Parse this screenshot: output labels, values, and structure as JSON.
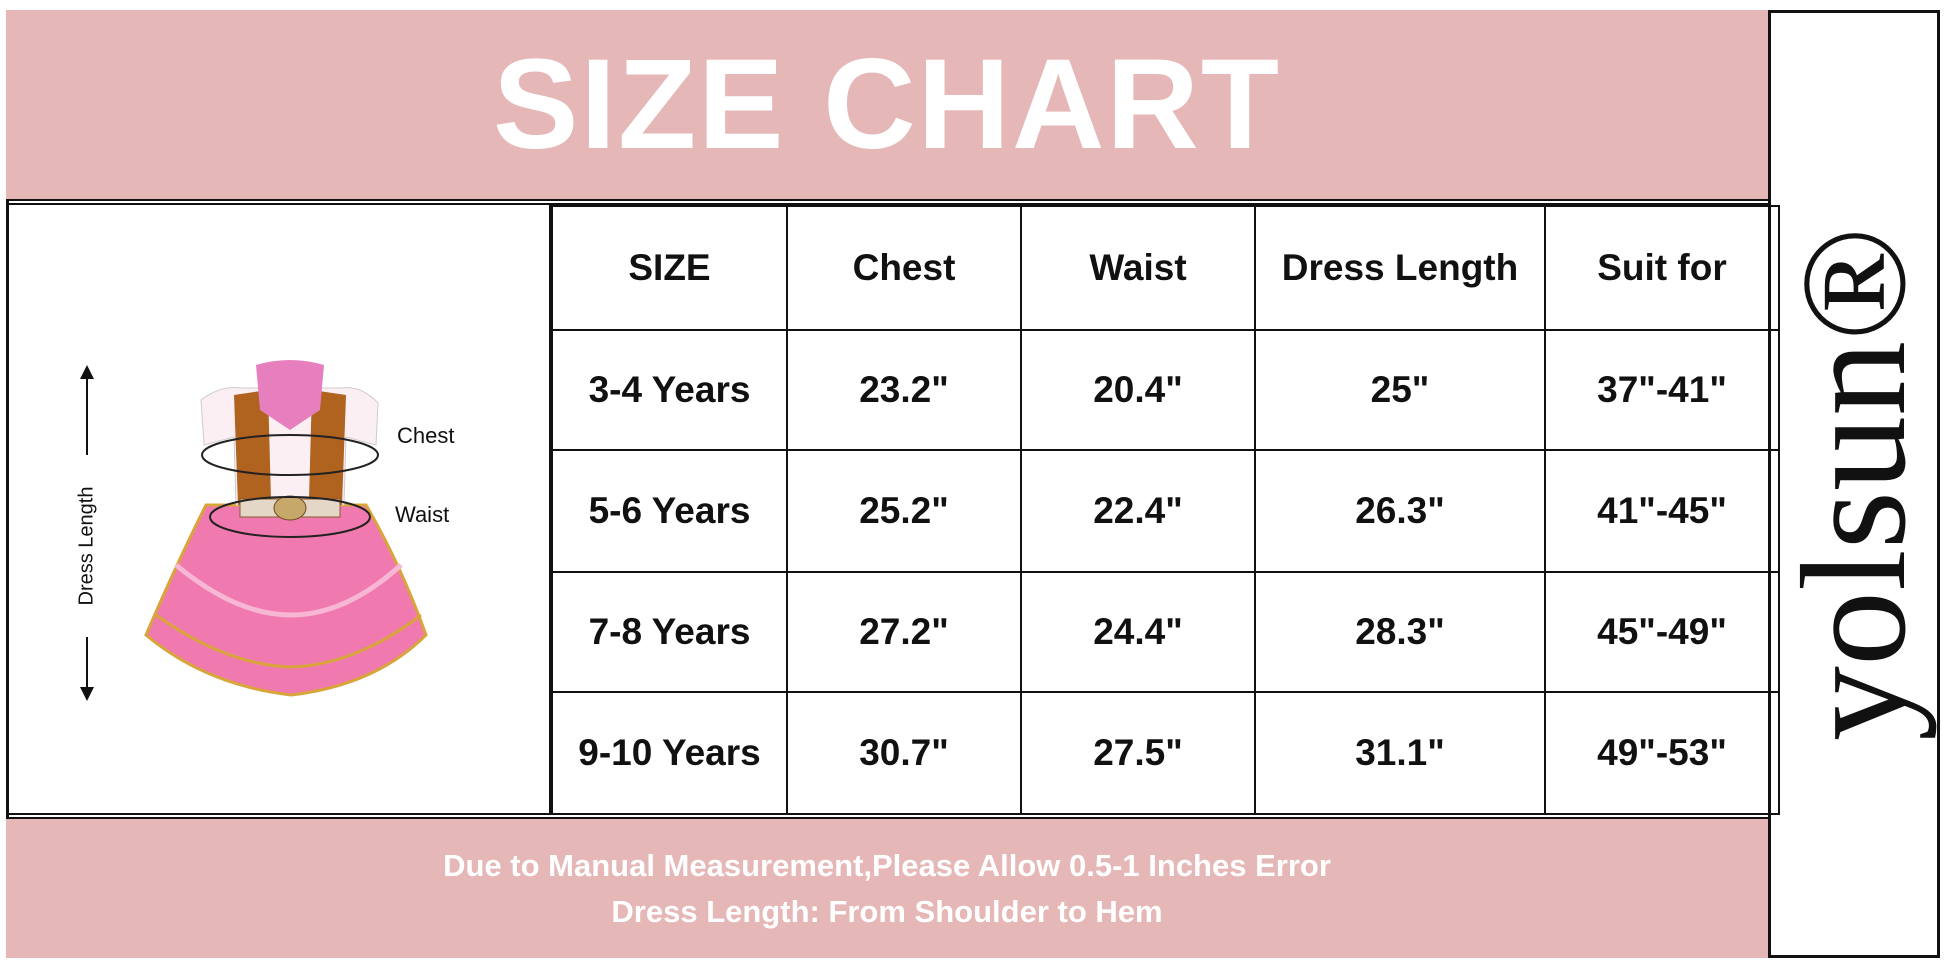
{
  "header": {
    "title": "SIZE CHART"
  },
  "figure": {
    "labels": {
      "chest": "Chest",
      "waist": "Waist",
      "length": "Dress Length"
    }
  },
  "table": {
    "columns": [
      "SIZE",
      "Chest",
      "Waist",
      "Dress Length",
      "Suit for"
    ],
    "rows": [
      [
        "3-4 Years",
        "23.2\"",
        "20.4\"",
        "25\"",
        "37\"-41\""
      ],
      [
        "5-6 Years",
        "25.2\"",
        "22.4\"",
        "26.3\"",
        "41\"-45\""
      ],
      [
        "7-8 Years",
        "27.2\"",
        "24.4\"",
        "28.3\"",
        "45\"-49\""
      ],
      [
        "9-10 Years",
        "30.7\"",
        "27.5\"",
        "31.1\"",
        "49\"-53\""
      ]
    ]
  },
  "footer": {
    "notes": [
      "Due to Manual Measurement,Please Allow 0.5-1 Inches Error",
      "Dress Length: From Shoulder to Hem"
    ]
  },
  "brand": {
    "name": "yolsun®"
  }
}
